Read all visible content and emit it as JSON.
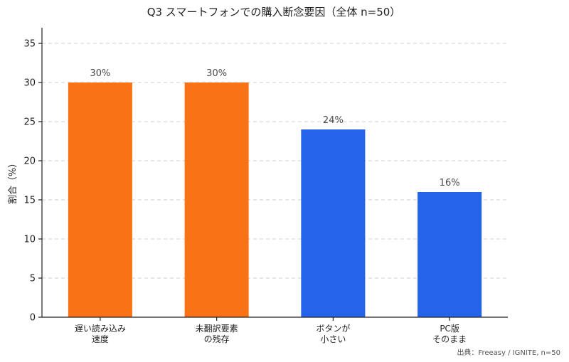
{
  "chart_data": {
    "type": "bar",
    "title": "Q3 スマートフォンでの購入断念要因（全体 n=50）",
    "ylabel": "割合（%）",
    "xlabel": "",
    "categories": [
      [
        "遅い読み込み",
        "速度"
      ],
      [
        "未翻訳要素",
        "の残存"
      ],
      [
        "ボタンが",
        "小さい"
      ],
      [
        "PC版",
        "そのまま"
      ]
    ],
    "values": [
      30,
      30,
      24,
      16
    ],
    "value_labels": [
      "30%",
      "30%",
      "24%",
      "16%"
    ],
    "colors": [
      "#f97316",
      "#f97316",
      "#2563eb",
      "#2563eb"
    ],
    "ylim": [
      0,
      37
    ],
    "yticks": [
      0,
      5,
      10,
      15,
      20,
      25,
      30,
      35
    ],
    "grid": true,
    "source": "出典：Freeasy / IGNITE, n=50"
  }
}
